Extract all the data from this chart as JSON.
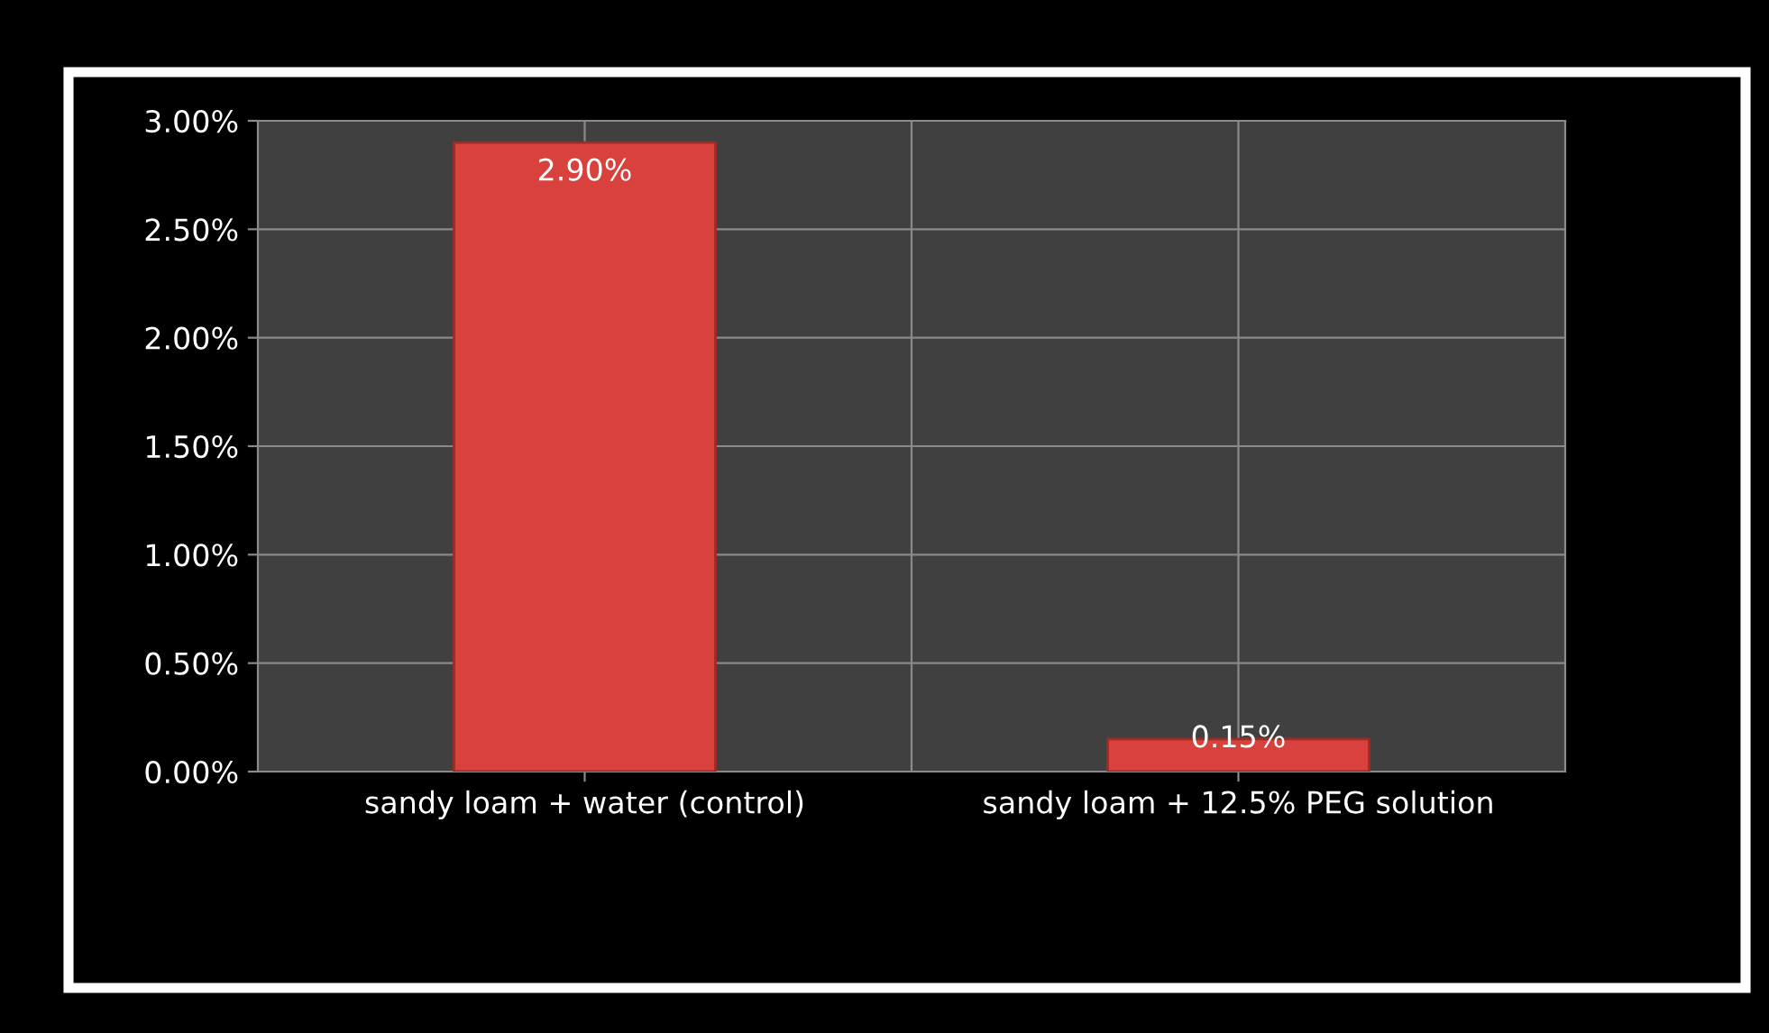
{
  "chart_data": {
    "type": "bar",
    "categories": [
      "sandy loam + water (control)",
      "sandy loam + 12.5% PEG solution"
    ],
    "values": [
      2.9,
      0.15
    ],
    "value_labels": [
      "2.90%",
      "0.15%"
    ],
    "color": "#d9413c",
    "ylim": [
      0,
      3
    ],
    "yticks": [
      {
        "value": 0,
        "label": "0.00%"
      },
      {
        "value": 0.5,
        "label": "0.50%"
      },
      {
        "value": 1,
        "label": "1.00%"
      },
      {
        "value": 1.5,
        "label": "1.50%"
      },
      {
        "value": 2,
        "label": "2.00%"
      },
      {
        "value": 2.5,
        "label": "2.50%"
      },
      {
        "value": 3,
        "label": "3.00%"
      }
    ],
    "grid": true
  }
}
